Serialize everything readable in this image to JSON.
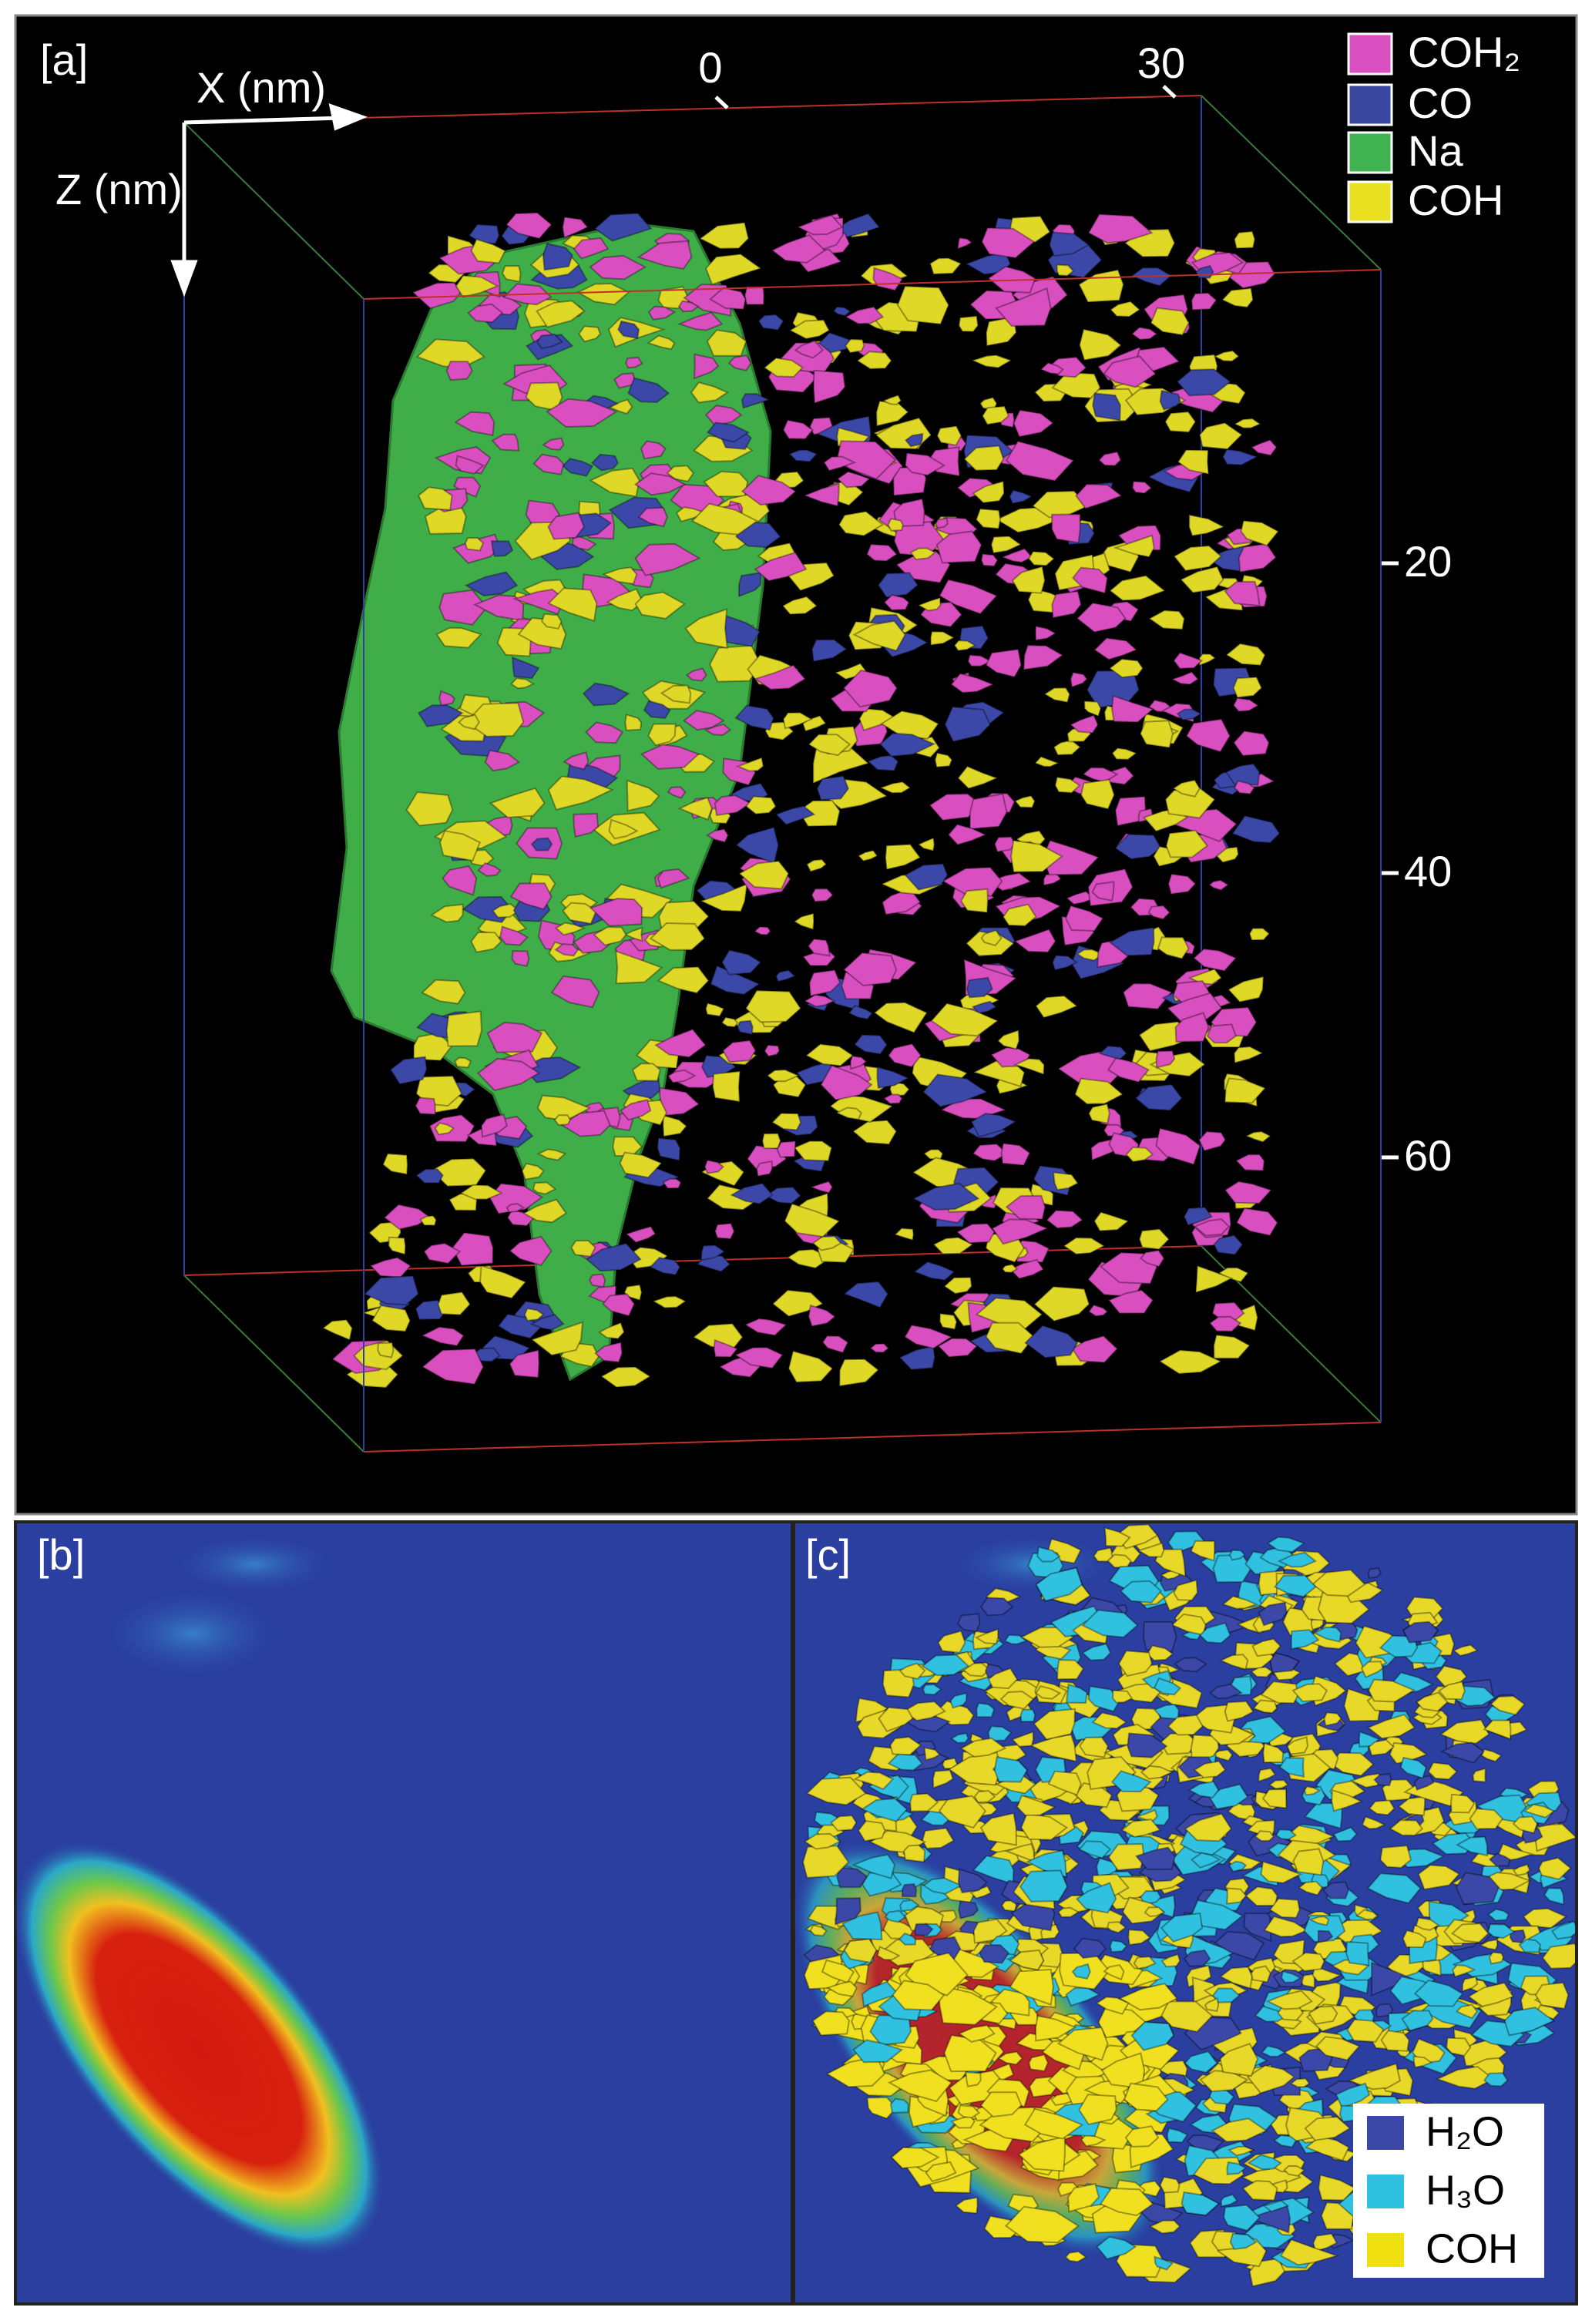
{
  "panels": {
    "a": {
      "label": "[a]",
      "x_axis_label": "X (nm)",
      "z_axis_label": "Z (nm)",
      "x_ticks": [
        0,
        30
      ],
      "z_ticks": [
        20,
        40,
        60
      ],
      "legend": [
        "COH₂",
        "CO",
        "Na",
        "COH"
      ]
    },
    "b": {
      "label": "[b]"
    },
    "c": {
      "label": "[c]",
      "legend": [
        "H₂O",
        "H₃O",
        "COH"
      ]
    }
  }
}
